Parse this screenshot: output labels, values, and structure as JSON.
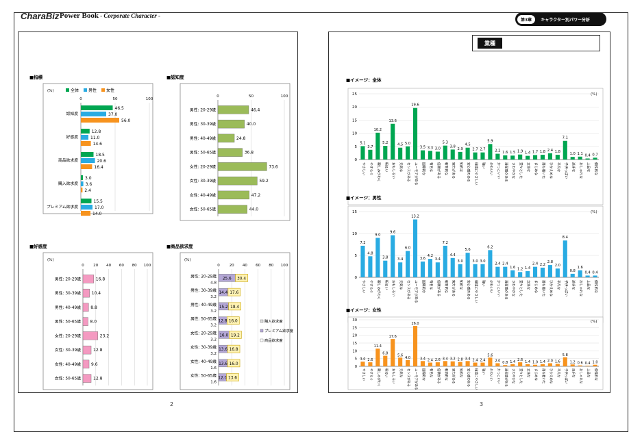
{
  "header": {
    "brand": "CharaBiz",
    "title": "Power Book",
    "subtitle": " - Corporate Character -",
    "chapter": "第3章",
    "chapter_title": "キャラクター別パワー分析"
  },
  "pages": {
    "left_number": "2",
    "right_number": "3"
  },
  "category_box": {
    "label": "業種",
    "value": ""
  },
  "left_panels": {
    "indicators": {
      "title": "■指標",
      "unit": "(%)",
      "legend": [
        "全体",
        "男性",
        "女性"
      ],
      "colors": [
        "#00a651",
        "#29abe2",
        "#f7931e"
      ],
      "ticks": [
        "0",
        "50",
        "100"
      ],
      "max": 100,
      "categories": [
        "認知度",
        "好感度",
        "商品欲求度",
        "購入欲求度",
        "プレミアム欲求度"
      ],
      "series": [
        {
          "name": "全体",
          "values": [
            46.5,
            12.8,
            18.5,
            3.0,
            15.5
          ]
        },
        {
          "name": "男性",
          "values": [
            37.0,
            11.0,
            20.6,
            3.6,
            17.0
          ]
        },
        {
          "name": "女性",
          "values": [
            56.0,
            14.6,
            16.4,
            2.4,
            14.0
          ]
        }
      ]
    },
    "awareness": {
      "title": "■認知度",
      "ticks": [
        "0",
        "50",
        "100"
      ],
      "max": 100,
      "color": "#9bbb59",
      "categories": [
        "男性: 20-29歳",
        "男性: 30-39歳",
        "男性: 40-49歳",
        "男性: 50-65歳",
        "女性: 20-29歳",
        "女性: 30-39歳",
        "女性: 40-49歳",
        "女性: 50-65歳"
      ],
      "values": [
        46.4,
        40.0,
        24.8,
        36.8,
        73.6,
        59.2,
        47.2,
        44.0
      ]
    },
    "favorability": {
      "title": "■好感度",
      "unit": "(%)",
      "ticks": [
        "0",
        "20",
        "40",
        "60",
        "80",
        "100"
      ],
      "max": 100,
      "color": "#f49ac1",
      "categories": [
        "男性: 20-29歳",
        "男性: 30-39歳",
        "男性: 40-49歳",
        "男性: 50-65歳",
        "女性: 20-29歳",
        "女性: 30-39歳",
        "女性: 40-49歳",
        "女性: 50-65歳"
      ],
      "values": [
        16.8,
        10.4,
        8.8,
        8.0,
        23.2,
        12.8,
        9.6,
        12.8
      ]
    },
    "desire": {
      "title": "■商品欲求度",
      "unit": "(%)",
      "ticks": [
        "0",
        "20",
        "40",
        "60",
        "80",
        "100"
      ],
      "max": 100,
      "legend": [
        "購入欲求度",
        "プレミアム欲求度",
        "商品欲求度"
      ],
      "categories": [
        "男性: 20-29歳",
        "男性: 30-39歳",
        "男性: 40-49歳",
        "男性: 50-65歳",
        "女性: 20-29歳",
        "女性: 30-39歳",
        "女性: 40-49歳",
        "女性: 50-65歳"
      ],
      "purchase": [
        4.8,
        3.2,
        3.2,
        3.2,
        3.2,
        3.2,
        1.6,
        1.6
      ],
      "premium": [
        25.6,
        14.4,
        15.2,
        12.8,
        16.0,
        13.6,
        13.6,
        12.0
      ],
      "product": [
        30.4,
        17.6,
        18.4,
        16.0,
        19.2,
        16.8,
        16.0,
        13.6
      ]
    }
  },
  "image_charts": {
    "labels": [
      "やさしい",
      "やすらぐ",
      "親しみがわく",
      "明るい",
      "おもしろい",
      "元気な",
      "センスがある",
      "ユーモアがある",
      "国際的な",
      "有名な",
      "信頼がある",
      "斬新的な",
      "実力がある",
      "知的な",
      "安心感のある",
      "環境にやさしい",
      "強い",
      "かわいい",
      "かっこいい",
      "清潔感がある",
      "さわやかな",
      "堂々とした",
      "立派な",
      "まじめな",
      "落ち着いた",
      "ひかえめな",
      "平凡な",
      "子供っぽい",
      "派手な",
      "おしゃれな",
      "上品な",
      "個性的な"
    ],
    "all": {
      "title": "■イメージ：全体",
      "unit": "(%)",
      "color": "#00a651",
      "ticks": [
        "0",
        "5",
        "10",
        "15",
        "20",
        "25"
      ],
      "max": 25,
      "values": [
        5.1,
        3.7,
        10.2,
        5.2,
        13.6,
        4.5,
        5.0,
        19.6,
        3.5,
        3.3,
        3.0,
        5.3,
        3.8,
        2.9,
        4.5,
        2.7,
        2.7,
        5.9,
        2.2,
        1.6,
        1.5,
        1.9,
        1.4,
        1.7,
        1.8,
        2.4,
        1.8,
        7.1,
        1.0,
        1.1,
        0.4,
        0.7
      ]
    },
    "male": {
      "title": "■イメージ：男性",
      "unit": "(%)",
      "color": "#29abe2",
      "ticks": [
        "0",
        "5",
        "10",
        "15"
      ],
      "max": 15,
      "values": [
        7.2,
        4.8,
        9.0,
        3.8,
        9.6,
        3.4,
        6.0,
        13.2,
        3.6,
        4.2,
        3.4,
        7.2,
        4.4,
        3.0,
        5.6,
        3.0,
        3.0,
        6.2,
        2.4,
        2.4,
        1.6,
        1.2,
        1.4,
        2.4,
        2.2,
        2.8,
        2.0,
        8.4,
        0.8,
        1.6,
        0.4,
        0.4
      ]
    },
    "female": {
      "title": "■イメージ：女性",
      "unit": "(%)",
      "color": "#f7931e",
      "ticks": [
        "0",
        "5",
        "10",
        "15",
        "20",
        "25",
        "30"
      ],
      "max": 30,
      "values": [
        3.0,
        2.6,
        11.4,
        6.8,
        17.6,
        5.6,
        4.0,
        26.0,
        3.4,
        2.4,
        2.6,
        3.4,
        3.2,
        2.8,
        3.4,
        2.4,
        2.4,
        5.6,
        2.0,
        0.8,
        1.4,
        2.6,
        1.4,
        1.0,
        1.4,
        2.0,
        1.6,
        5.8,
        1.2,
        0.6,
        0.4,
        1.0
      ]
    }
  }
}
